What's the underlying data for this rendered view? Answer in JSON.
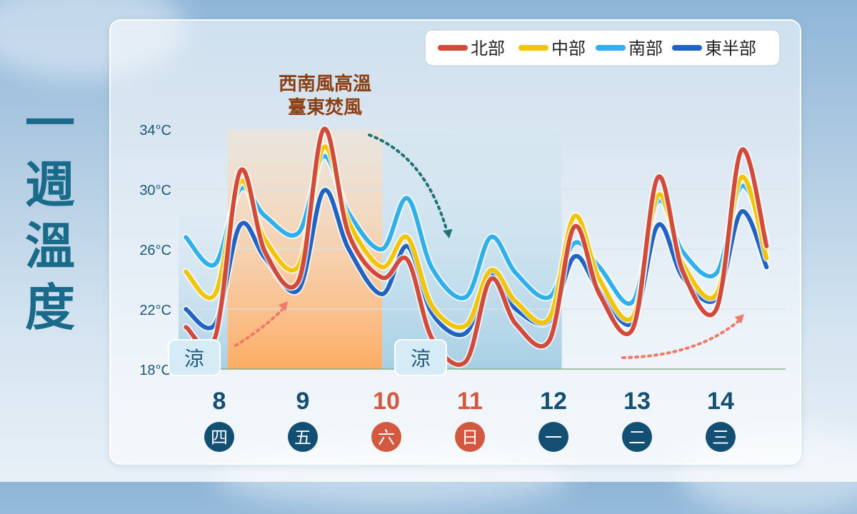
{
  "page_title": "一週溫度",
  "colors": {
    "north": "#d24a3a",
    "central": "#f3c400",
    "south": "#2fb0ea",
    "east": "#1f63c4",
    "weekday": "#124f72",
    "weekend": "#d2593f",
    "annotation": "#8b3f12"
  },
  "chart_data": {
    "type": "line",
    "title": "",
    "xlabel": "",
    "ylabel": "",
    "ylim": [
      18,
      34
    ],
    "grid": true,
    "legend_position": "top-right",
    "y_ticks": [
      "18°C",
      "22°C",
      "26°C",
      "30°C",
      "34°C"
    ],
    "y_tick_values": [
      18,
      22,
      26,
      30,
      34
    ],
    "days": [
      {
        "date": "8",
        "weekday": "四",
        "weekend": false
      },
      {
        "date": "9",
        "weekday": "五",
        "weekend": false
      },
      {
        "date": "10",
        "weekday": "六",
        "weekend": true
      },
      {
        "date": "11",
        "weekday": "日",
        "weekend": true
      },
      {
        "date": "12",
        "weekday": "一",
        "weekend": false
      },
      {
        "date": "13",
        "weekday": "二",
        "weekend": false
      },
      {
        "date": "14",
        "weekday": "三",
        "weekend": false
      }
    ],
    "x": [
      7.6,
      7.95,
      8.25,
      8.55,
      8.95,
      9.25,
      9.55,
      9.95,
      10.25,
      10.55,
      10.95,
      11.25,
      11.55,
      11.95,
      12.25,
      12.55,
      12.95,
      13.25,
      13.55,
      13.95,
      14.25,
      14.55
    ],
    "series": [
      {
        "name": "北部",
        "color_key": "north",
        "values": [
          20.8,
          20.1,
          31.2,
          25.8,
          23.9,
          34.0,
          27.0,
          24.1,
          25.3,
          20.0,
          18.5,
          24.0,
          21.0,
          19.9,
          27.5,
          23.0,
          20.7,
          30.8,
          24.5,
          22.0,
          32.6,
          26.2
        ]
      },
      {
        "name": "中部",
        "color_key": "central",
        "values": [
          24.5,
          23.0,
          30.5,
          26.6,
          24.9,
          32.8,
          27.8,
          24.8,
          26.8,
          22.2,
          20.9,
          24.6,
          22.5,
          21.4,
          28.2,
          24.0,
          21.5,
          29.6,
          25.0,
          23.0,
          30.8,
          25.4
        ]
      },
      {
        "name": "南部",
        "color_key": "south",
        "values": [
          26.8,
          25.0,
          30.0,
          28.2,
          27.1,
          32.2,
          28.4,
          26.0,
          29.4,
          24.7,
          22.8,
          26.8,
          24.4,
          22.8,
          26.4,
          24.8,
          22.5,
          29.2,
          25.8,
          24.4,
          30.2,
          26.6
        ]
      },
      {
        "name": "東半部",
        "color_key": "east",
        "values": [
          22.0,
          21.0,
          27.6,
          25.4,
          23.3,
          29.9,
          26.0,
          23.0,
          26.2,
          21.7,
          20.4,
          24.3,
          22.0,
          21.2,
          25.5,
          23.2,
          21.1,
          27.6,
          24.1,
          22.7,
          28.5,
          24.8
        ]
      }
    ],
    "annotations": {
      "headline_line1": "西南風高溫",
      "headline_line2": "臺東焚風",
      "cool_label": "涼"
    },
    "shaded_regions": [
      {
        "kind": "hot",
        "from_x": 8.1,
        "to_x": 9.95
      },
      {
        "kind": "cool",
        "from_x": 9.95,
        "to_x": 12.1
      }
    ]
  }
}
